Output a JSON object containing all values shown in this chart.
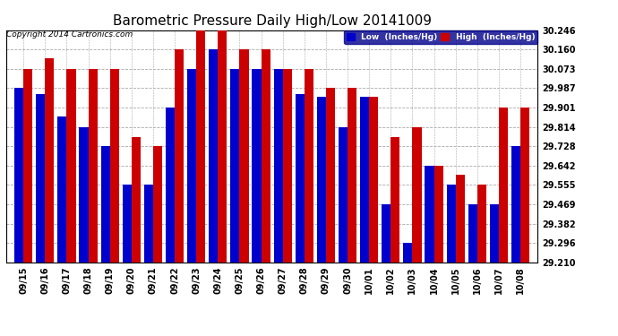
{
  "title": "Barometric Pressure Daily High/Low 20141009",
  "copyright": "Copyright 2014 Cartronics.com",
  "legend_low": "Low  (Inches/Hg)",
  "legend_high": "High  (Inches/Hg)",
  "dates": [
    "09/15",
    "09/16",
    "09/17",
    "09/18",
    "09/19",
    "09/20",
    "09/21",
    "09/22",
    "09/23",
    "09/24",
    "09/25",
    "09/26",
    "09/27",
    "09/28",
    "09/29",
    "09/30",
    "10/01",
    "10/02",
    "10/03",
    "10/04",
    "10/05",
    "10/06",
    "10/07",
    "10/08"
  ],
  "low": [
    29.987,
    29.96,
    29.86,
    29.814,
    29.728,
    29.555,
    29.555,
    29.901,
    30.073,
    30.16,
    30.073,
    30.073,
    30.073,
    29.96,
    29.95,
    29.814,
    29.95,
    29.469,
    29.296,
    29.642,
    29.555,
    29.469,
    29.469,
    29.728
  ],
  "high": [
    30.073,
    30.12,
    30.073,
    30.073,
    30.073,
    29.769,
    29.728,
    30.16,
    30.246,
    30.246,
    30.16,
    30.16,
    30.073,
    30.073,
    29.987,
    29.987,
    29.95,
    29.769,
    29.814,
    29.642,
    29.6,
    29.555,
    29.901,
    29.901
  ],
  "ylim_min": 29.21,
  "ylim_max": 30.246,
  "yticks": [
    29.21,
    29.296,
    29.382,
    29.469,
    29.555,
    29.642,
    29.728,
    29.814,
    29.901,
    29.987,
    30.073,
    30.16,
    30.246
  ],
  "bar_color_low": "#0000cc",
  "bar_color_high": "#cc0000",
  "bg_color": "#ffffff",
  "grid_color": "#aaaaaa",
  "title_fontsize": 11,
  "copyright_fontsize": 6.5,
  "tick_fontsize": 7,
  "bar_width": 0.42
}
